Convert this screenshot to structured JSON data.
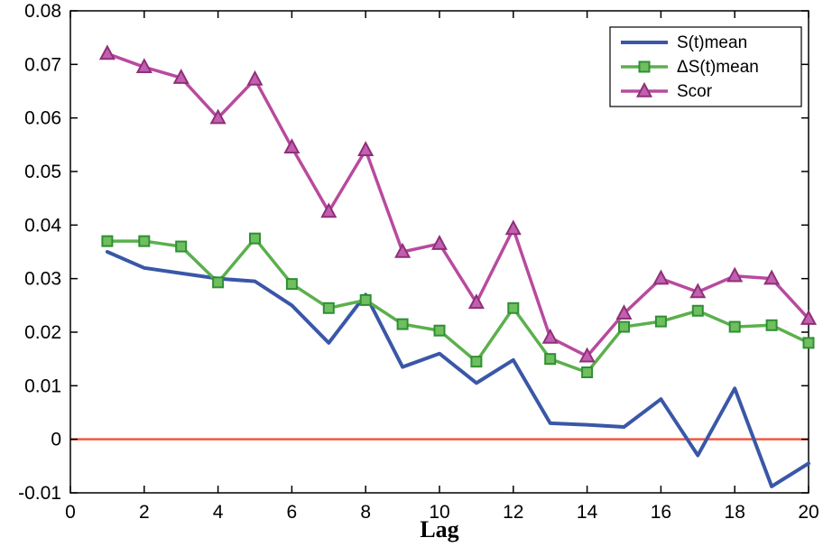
{
  "figure": {
    "background": "#ffffff"
  },
  "chart_data": {
    "type": "line",
    "title": "",
    "xlabel": "Lag",
    "ylabel": "",
    "xlim": [
      0,
      20
    ],
    "ylim": [
      -0.01,
      0.08
    ],
    "grid": false,
    "legend_position": "top-right",
    "x_ticks": [
      0,
      2,
      4,
      6,
      8,
      10,
      12,
      14,
      16,
      18,
      20
    ],
    "x_tick_labels": [
      "0",
      "2",
      "4",
      "6",
      "8",
      "10",
      "12",
      "14",
      "16",
      "18",
      "20"
    ],
    "y_ticks": [
      -0.01,
      0,
      0.01,
      0.02,
      0.03,
      0.04,
      0.05,
      0.06,
      0.07,
      0.08
    ],
    "y_tick_labels": [
      "-0.01",
      "0",
      "0.01",
      "0.02",
      "0.03",
      "0.04",
      "0.05",
      "0.06",
      "0.07",
      "0.08"
    ],
    "x": [
      1,
      2,
      3,
      4,
      5,
      6,
      7,
      8,
      9,
      10,
      11,
      12,
      13,
      14,
      15,
      16,
      17,
      18,
      19,
      20
    ],
    "series": [
      {
        "name": "S(t)mean",
        "color": "#3a57a7",
        "width": 4,
        "marker": "none",
        "marker_fill": "#3a57a7",
        "marker_edge": "#2a3f80",
        "values": [
          0.035,
          0.032,
          0.031,
          0.03,
          0.0295,
          0.025,
          0.018,
          0.027,
          0.0135,
          0.016,
          0.0105,
          0.0148,
          0.003,
          0.0027,
          0.0023,
          0.0075,
          -0.003,
          0.0095,
          -0.0088,
          -0.0045
        ]
      },
      {
        "name": "ΔS(t)mean",
        "color": "#5bb04c",
        "width": 3.5,
        "marker": "square",
        "marker_fill": "#6fbf5e",
        "marker_edge": "#2f8f35",
        "values": [
          0.037,
          0.037,
          0.036,
          0.0293,
          0.0375,
          0.029,
          0.0245,
          0.026,
          0.0215,
          0.0203,
          0.0145,
          0.0245,
          0.015,
          0.0125,
          0.021,
          0.022,
          0.024,
          0.021,
          0.0213,
          0.018
        ]
      },
      {
        "name": "Scor",
        "color": "#b84a9e",
        "width": 3.5,
        "marker": "triangle",
        "marker_fill": "#c25fae",
        "marker_edge": "#8e2f7a",
        "values": [
          0.072,
          0.0695,
          0.0675,
          0.06,
          0.0672,
          0.0545,
          0.0425,
          0.054,
          0.035,
          0.0365,
          0.0255,
          0.0393,
          0.019,
          0.0155,
          0.0235,
          0.03,
          0.0275,
          0.0305,
          0.03,
          0.0225
        ]
      }
    ],
    "reference_line": {
      "y": 0,
      "color": "#f2573f",
      "width": 2.5
    }
  }
}
